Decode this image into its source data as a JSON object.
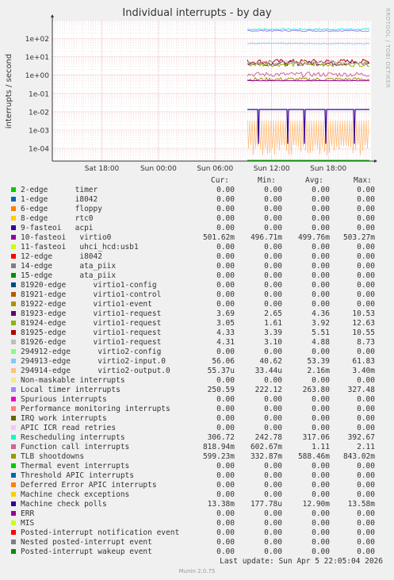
{
  "side_label": "RRDTOOL / TOBI OETIKER",
  "chart_data": {
    "type": "line",
    "title": "Individual interrupts - by day",
    "ylabel": "interrupts / second",
    "yscale": "log",
    "ylim": [
      3e-05,
      600
    ],
    "y_ticks": [
      "1e+02",
      "1e+01",
      "1e+00",
      "1e-01",
      "1e-02",
      "1e-03",
      "1e-04"
    ],
    "x_ticks": [
      "Sat 18:00",
      "Sun 00:00",
      "Sun 06:00",
      "Sun 12:00",
      "Sun 18:00"
    ],
    "grid": true,
    "legend_position": "bottom"
  },
  "legend": {
    "headers": {
      "cur": "Cur:",
      "min": "Min:",
      "avg": "Avg:",
      "max": "Max:"
    },
    "rows": [
      {
        "name": "2-edge      timer",
        "color": "#00cc00",
        "cur": "0.00",
        "min": "0.00",
        "avg": "0.00",
        "max": "0.00"
      },
      {
        "name": "1-edge      i8042",
        "color": "#0066b3",
        "cur": "0.00",
        "min": "0.00",
        "avg": "0.00",
        "max": "0.00"
      },
      {
        "name": "6-edge      floppy",
        "color": "#ff8000",
        "cur": "0.00",
        "min": "0.00",
        "avg": "0.00",
        "max": "0.00"
      },
      {
        "name": "8-edge      rtc0",
        "color": "#ffcc00",
        "cur": "0.00",
        "min": "0.00",
        "avg": "0.00",
        "max": "0.00"
      },
      {
        "name": "9-fasteoi   acpi",
        "color": "#330099",
        "cur": "0.00",
        "min": "0.00",
        "avg": "0.00",
        "max": "0.00"
      },
      {
        "name": "10-fasteoi   virtio0",
        "color": "#990099",
        "cur": "501.62m",
        "min": "496.71m",
        "avg": "499.76m",
        "max": "503.27m"
      },
      {
        "name": "11-fasteoi   uhci_hcd:usb1",
        "color": "#ccff00",
        "cur": "0.00",
        "min": "0.00",
        "avg": "0.00",
        "max": "0.00"
      },
      {
        "name": "12-edge      i8042",
        "color": "#ff0000",
        "cur": "0.00",
        "min": "0.00",
        "avg": "0.00",
        "max": "0.00"
      },
      {
        "name": "14-edge      ata_piix",
        "color": "#808080",
        "cur": "0.00",
        "min": "0.00",
        "avg": "0.00",
        "max": "0.00"
      },
      {
        "name": "15-edge      ata_piix",
        "color": "#008f00",
        "cur": "0.00",
        "min": "0.00",
        "avg": "0.00",
        "max": "0.00"
      },
      {
        "name": "81920-edge      virtio1-config",
        "color": "#00487d",
        "cur": "0.00",
        "min": "0.00",
        "avg": "0.00",
        "max": "0.00"
      },
      {
        "name": "81921-edge      virtio1-control",
        "color": "#b35a00",
        "cur": "0.00",
        "min": "0.00",
        "avg": "0.00",
        "max": "0.00"
      },
      {
        "name": "81922-edge      virtio1-event",
        "color": "#b38f00",
        "cur": "0.00",
        "min": "0.00",
        "avg": "0.00",
        "max": "0.00"
      },
      {
        "name": "81923-edge      virtio1-request",
        "color": "#6b006b",
        "cur": "3.69",
        "min": "2.65",
        "avg": "4.36",
        "max": "10.53"
      },
      {
        "name": "81924-edge      virtio1-request",
        "color": "#8fb300",
        "cur": "3.05",
        "min": "1.61",
        "avg": "3.92",
        "max": "12.63"
      },
      {
        "name": "81925-edge      virtio1-request",
        "color": "#b30000",
        "cur": "4.33",
        "min": "3.39",
        "avg": "5.51",
        "max": "10.55"
      },
      {
        "name": "81926-edge      virtio1-request",
        "color": "#bebebe",
        "cur": "4.31",
        "min": "3.10",
        "avg": "4.88",
        "max": "8.73"
      },
      {
        "name": "294912-edge      virtio2-config",
        "color": "#80ff80",
        "cur": "0.00",
        "min": "0.00",
        "avg": "0.00",
        "max": "0.00"
      },
      {
        "name": "294913-edge      virtio2-input.0",
        "color": "#80c9ff",
        "cur": "56.06",
        "min": "40.62",
        "avg": "53.39",
        "max": "61.83"
      },
      {
        "name": "294914-edge      virtio2-output.0",
        "color": "#ffc080",
        "cur": "55.37u",
        "min": "33.44u",
        "avg": "2.16m",
        "max": "3.40m"
      },
      {
        "name": "Non-maskable interrupts",
        "color": "#ffe680",
        "cur": "0.00",
        "min": "0.00",
        "avg": "0.00",
        "max": "0.00"
      },
      {
        "name": "Local timer interrupts",
        "color": "#aa80ff",
        "cur": "250.59",
        "min": "222.12",
        "avg": "263.80",
        "max": "327.48"
      },
      {
        "name": "Spurious interrupts",
        "color": "#ee00cc",
        "cur": "0.00",
        "min": "0.00",
        "avg": "0.00",
        "max": "0.00"
      },
      {
        "name": "Performance monitoring interrupts",
        "color": "#ff8080",
        "cur": "0.00",
        "min": "0.00",
        "avg": "0.00",
        "max": "0.00"
      },
      {
        "name": "IRQ work interrupts",
        "color": "#666600",
        "cur": "0.00",
        "min": "0.00",
        "avg": "0.00",
        "max": "0.00"
      },
      {
        "name": "APIC ICR read retries",
        "color": "#ffbfff",
        "cur": "0.00",
        "min": "0.00",
        "avg": "0.00",
        "max": "0.00"
      },
      {
        "name": "Rescheduling interrupts",
        "color": "#00ffcc",
        "cur": "306.72",
        "min": "242.78",
        "avg": "317.06",
        "max": "392.67"
      },
      {
        "name": "Function call interrupts",
        "color": "#cc6699",
        "cur": "818.94m",
        "min": "602.67m",
        "avg": "1.11",
        "max": "2.11"
      },
      {
        "name": "TLB shootdowns",
        "color": "#999900",
        "cur": "599.23m",
        "min": "332.87m",
        "avg": "588.46m",
        "max": "843.02m"
      },
      {
        "name": "Thermal event interrupts",
        "color": "#00cc00",
        "cur": "0.00",
        "min": "0.00",
        "avg": "0.00",
        "max": "0.00"
      },
      {
        "name": "Threshold APIC interrupts",
        "color": "#0066b3",
        "cur": "0.00",
        "min": "0.00",
        "avg": "0.00",
        "max": "0.00"
      },
      {
        "name": "Deferred Error APIC interrupts",
        "color": "#ff8000",
        "cur": "0.00",
        "min": "0.00",
        "avg": "0.00",
        "max": "0.00"
      },
      {
        "name": "Machine check exceptions",
        "color": "#ffcc00",
        "cur": "0.00",
        "min": "0.00",
        "avg": "0.00",
        "max": "0.00"
      },
      {
        "name": "Machine check polls",
        "color": "#330099",
        "cur": "13.38m",
        "min": "177.78u",
        "avg": "12.90m",
        "max": "13.58m"
      },
      {
        "name": "ERR",
        "color": "#990099",
        "cur": "0.00",
        "min": "0.00",
        "avg": "0.00",
        "max": "0.00"
      },
      {
        "name": "MIS",
        "color": "#ccff00",
        "cur": "0.00",
        "min": "0.00",
        "avg": "0.00",
        "max": "0.00"
      },
      {
        "name": "Posted-interrupt notification event",
        "color": "#ff0000",
        "cur": "0.00",
        "min": "0.00",
        "avg": "0.00",
        "max": "0.00"
      },
      {
        "name": "Nested posted-interrupt event",
        "color": "#808080",
        "cur": "0.00",
        "min": "0.00",
        "avg": "0.00",
        "max": "0.00"
      },
      {
        "name": "Posted-interrupt wakeup event",
        "color": "#008f00",
        "cur": "0.00",
        "min": "0.00",
        "avg": "0.00",
        "max": "0.00"
      }
    ]
  },
  "last_update": "Last update: Sun Apr  5 22:05:04 2026",
  "footer": "Munin 2.0.75"
}
